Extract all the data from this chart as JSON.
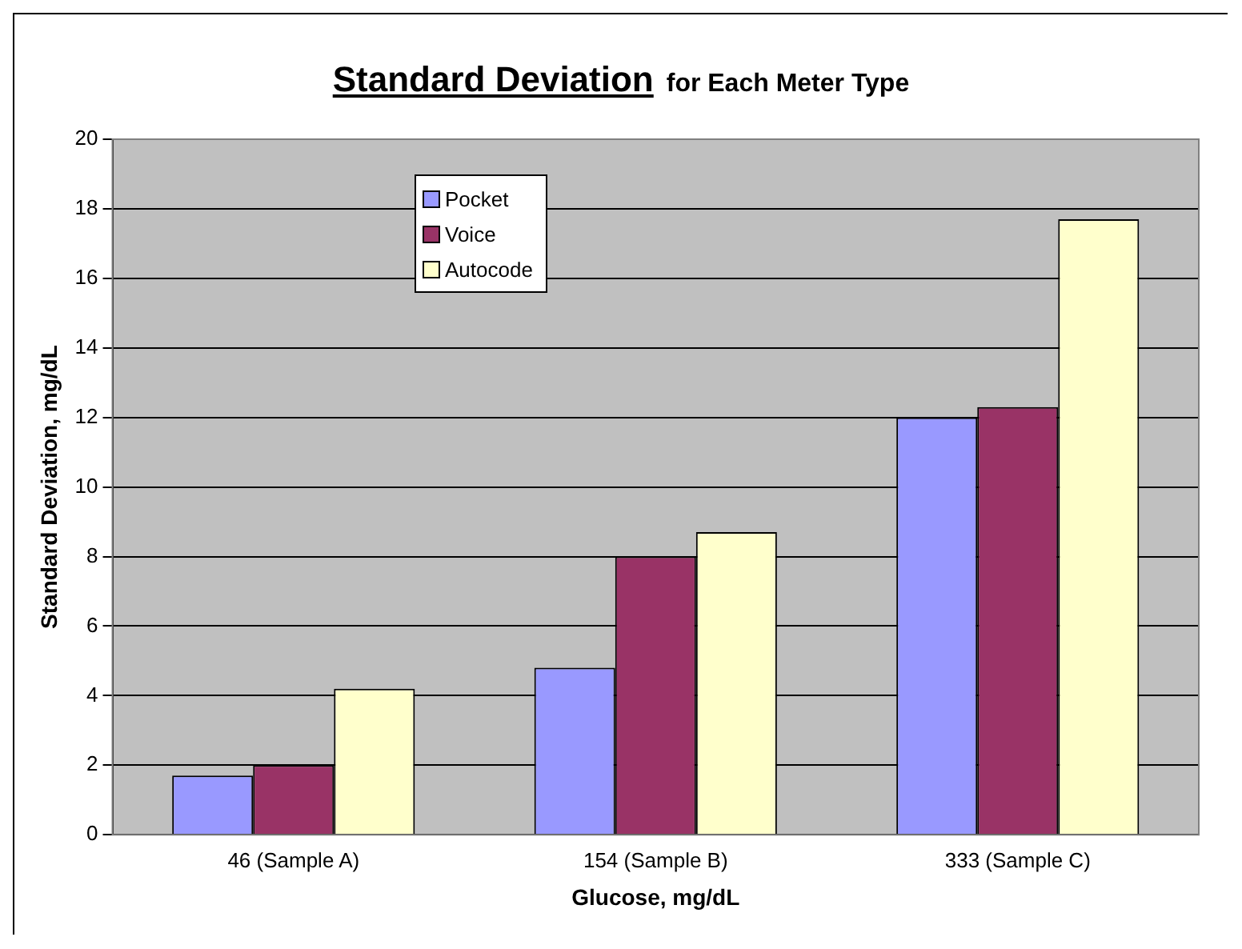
{
  "chart_data": {
    "type": "bar",
    "title": "Standard Deviation",
    "subtitle": "for Each Meter Type",
    "xlabel": "Glucose, mg/dL",
    "ylabel": "Standard Deviation, mg/dL",
    "categories": [
      "46 (Sample A)",
      "154 (Sample B)",
      "333 (Sample C)"
    ],
    "series": [
      {
        "name": "Pocket",
        "color": "#9999ff",
        "values": [
          1.7,
          4.8,
          12.0
        ]
      },
      {
        "name": "Voice",
        "color": "#993366",
        "values": [
          2.0,
          8.0,
          12.3
        ]
      },
      {
        "name": "Autocode",
        "color": "#ffffcc",
        "values": [
          4.2,
          8.7,
          17.7
        ]
      }
    ],
    "ylim": [
      0,
      20
    ],
    "yticks": [
      0,
      2,
      4,
      6,
      8,
      10,
      12,
      14,
      16,
      18,
      20
    ],
    "grid": "y",
    "legend": "top left"
  }
}
